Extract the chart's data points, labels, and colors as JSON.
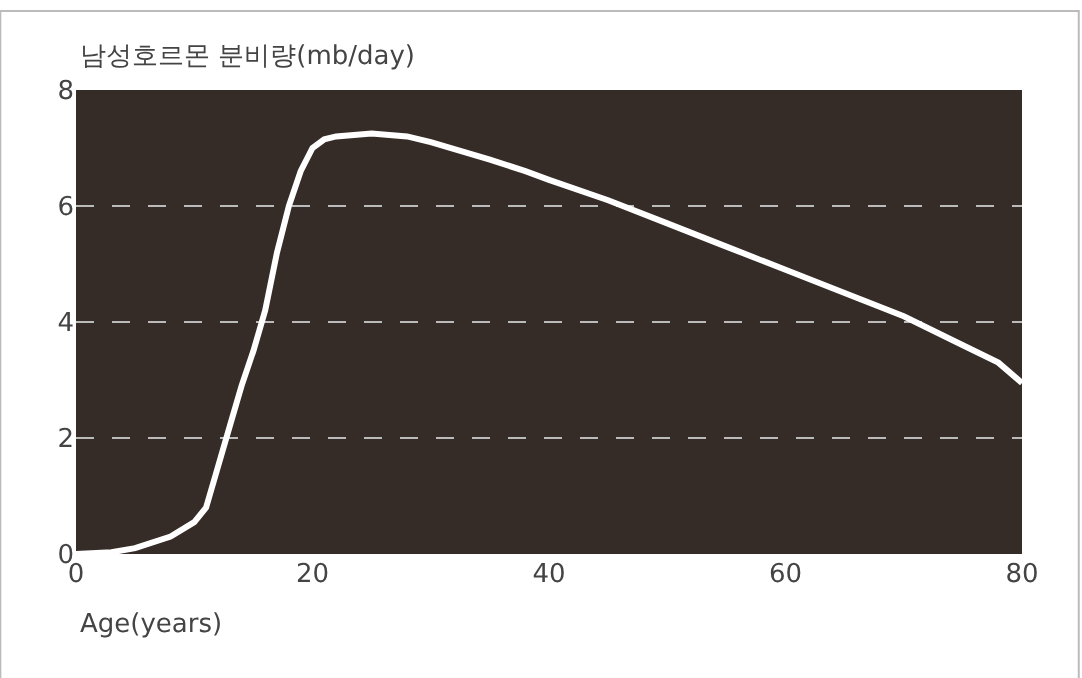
{
  "chart_data": {
    "type": "line",
    "title": "남성호르몬 분비량(mb/day)",
    "xlabel": "Age(years)",
    "x": [
      0,
      3,
      5,
      8,
      10,
      11,
      12,
      13,
      14,
      15,
      16,
      17,
      18,
      19,
      20,
      21,
      22,
      25,
      28,
      30,
      35,
      38,
      40,
      45,
      50,
      55,
      60,
      65,
      70,
      75,
      78,
      80
    ],
    "series": [
      {
        "color": "#ffffff",
        "values": [
          0,
          0.03,
          0.1,
          0.3,
          0.55,
          0.8,
          1.5,
          2.2,
          2.9,
          3.5,
          4.2,
          5.2,
          6.0,
          6.6,
          7.0,
          7.15,
          7.2,
          7.25,
          7.2,
          7.1,
          6.8,
          6.6,
          6.45,
          6.1,
          5.7,
          5.3,
          4.9,
          4.5,
          4.1,
          3.6,
          3.3,
          2.95
        ]
      }
    ],
    "xlim": [
      0,
      80
    ],
    "ylim": [
      0,
      8
    ],
    "xticks": [
      0,
      20,
      40,
      60,
      80
    ],
    "yticks": [
      0,
      2,
      4,
      6,
      8
    ],
    "grid": "y",
    "marker": "none",
    "line_style": "solid"
  }
}
